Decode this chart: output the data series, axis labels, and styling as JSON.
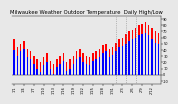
{
  "title": "Milwaukee Weather Outdoor Temperature  Daily High/Low",
  "background_color": "#e8e8e8",
  "plot_bg": "#e8e8e8",
  "high_color": "#ff0000",
  "low_color": "#0000ff",
  "bar_width": 0.45,
  "highs": [
    58,
    45,
    50,
    55,
    42,
    38,
    30,
    25,
    20,
    28,
    35,
    22,
    18,
    25,
    30,
    35,
    20,
    25,
    30,
    38,
    42,
    35,
    30,
    28,
    35,
    38,
    42,
    48,
    50,
    42,
    45,
    52,
    58,
    60,
    65,
    70,
    72,
    75,
    80,
    82,
    85,
    80,
    75,
    70,
    68
  ],
  "lows": [
    40,
    30,
    38,
    42,
    28,
    25,
    18,
    10,
    5,
    15,
    20,
    10,
    2,
    12,
    18,
    22,
    6,
    10,
    18,
    25,
    28,
    20,
    18,
    15,
    22,
    25,
    28,
    35,
    38,
    28,
    32,
    38,
    44,
    46,
    50,
    55,
    58,
    60,
    64,
    66,
    68,
    64,
    58,
    52,
    50
  ],
  "ylim": [
    -15,
    95
  ],
  "yticks": [
    -10,
    0,
    10,
    20,
    30,
    40,
    50,
    60,
    70,
    80,
    90
  ],
  "ytick_labels": [
    "-10",
    "0",
    "10",
    "20",
    "30",
    "40",
    "50",
    "60",
    "70",
    "80",
    "90"
  ],
  "dotted_vlines": [
    31,
    34,
    37
  ],
  "n_bars": 45,
  "tick_fontsize": 2.5,
  "title_fontsize": 3.8
}
